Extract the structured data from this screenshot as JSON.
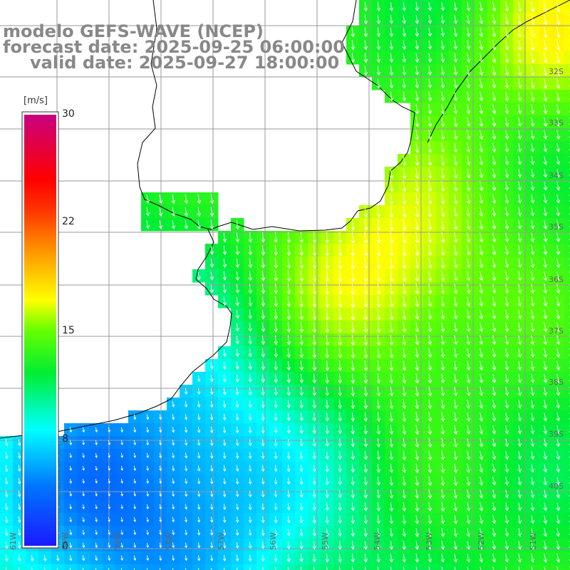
{
  "title": {
    "line1": "modelo GEFS-WAVE (NCEP)",
    "line2": "forecast date: 2025-09-25 06:00:00",
    "line3": "valid date: 2025-09-27 18:00:00"
  },
  "colorbar": {
    "unit": "[m/s]",
    "ticks": [
      "30",
      "22",
      "15",
      "8",
      "0"
    ],
    "tick_values": [
      30,
      22,
      15,
      8,
      0
    ],
    "range": [
      0,
      30
    ],
    "colors": [
      "#1a1aff",
      "#00aaff",
      "#00ffff",
      "#00ff00",
      "#ffff00",
      "#ff7f00",
      "#ff0000",
      "#c8007f"
    ]
  },
  "map": {
    "lat_labels": [
      "32S",
      "33S",
      "34S",
      "35S",
      "36S",
      "37S",
      "38S",
      "39S",
      "40S"
    ],
    "lon_labels": [
      "61W",
      "60W",
      "59W",
      "58W",
      "57W",
      "56W",
      "55W",
      "54W",
      "53W",
      "52W",
      "51W"
    ],
    "land_color": "#ffffff",
    "grid_color": "#999999",
    "coast_color": "#000000"
  }
}
